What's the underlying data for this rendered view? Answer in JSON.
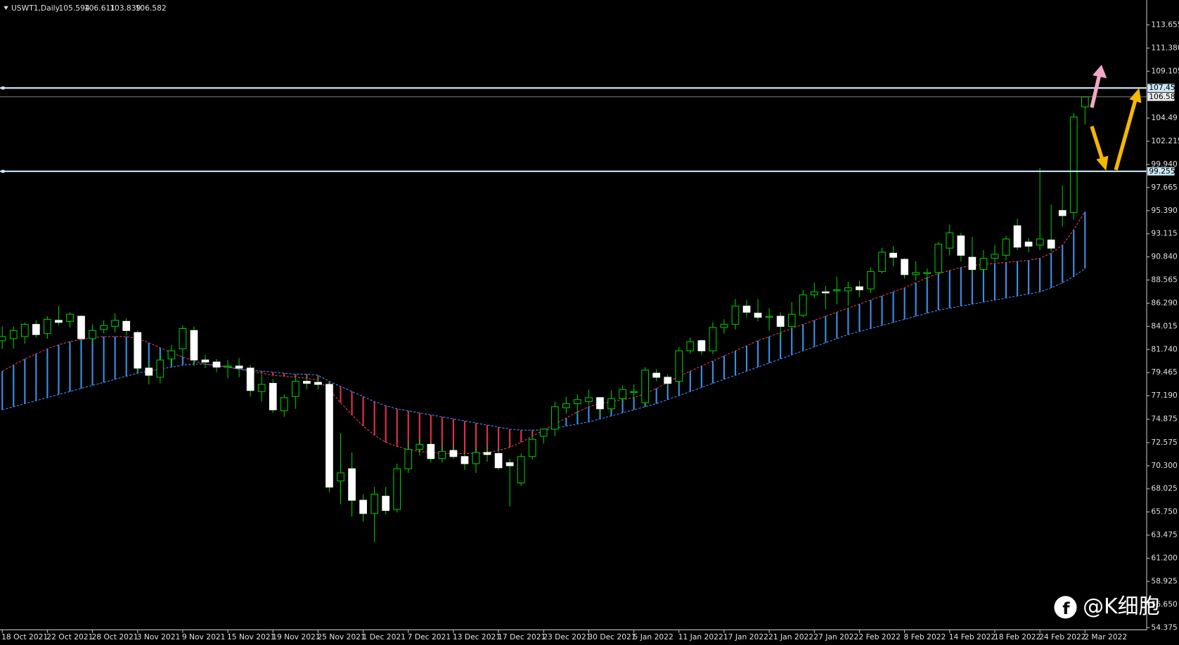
{
  "chart_data": {
    "type": "candlestick",
    "title": "USWT1,Daily",
    "colors": {
      "background": "#000000",
      "bull_body": "#000000",
      "bear_body": "#ffffff",
      "candle_outline": "#00c800",
      "bear_outline": "#ffffff",
      "span_a": "#e0405a",
      "span_b": "#4a8cff",
      "cloud_up": "#3a8ee6",
      "cloud_down": "#e0304e",
      "level": "#c8e6f5",
      "axis": "#c0c0c0"
    },
    "ylim": [
      54.156,
      116.094
    ],
    "yticks": [
      113.655,
      {
        "value": 111.38,
        "label": "111.380"
      },
      109.105,
      104.49,
      102.215,
      {
        "value": 99.94,
        "label": "99.940"
      },
      97.665,
      {
        "value": 95.39,
        "label": "95.390"
      },
      93.115,
      {
        "value": 90.84,
        "label": "90.840"
      },
      88.565,
      {
        "value": 86.29,
        "label": "86.290"
      },
      84.015,
      {
        "value": 81.74,
        "label": "81.740"
      },
      79.465,
      {
        "value": 77.19,
        "label": "77.190"
      },
      74.875,
      72.575,
      {
        "value": 70.3,
        "label": "70.300"
      },
      68.025,
      {
        "value": 65.75,
        "label": "65.750"
      },
      63.475,
      {
        "value": 61.2,
        "label": "61.200"
      },
      58.925,
      {
        "value": 56.65,
        "label": "56.650"
      },
      54.375
    ],
    "levels": [
      107.451,
      99.255
    ],
    "categories": [
      "18 Oct 2021",
      null,
      null,
      null,
      "22 Oct 2021",
      null,
      null,
      null,
      "28 Oct 2021",
      null,
      null,
      null,
      "3 Nov 2021",
      null,
      null,
      null,
      "9 Nov 2021",
      null,
      null,
      null,
      "15 Nov 2021",
      null,
      null,
      null,
      "19 Nov 2021",
      null,
      null,
      null,
      "25 Nov 2021",
      null,
      null,
      null,
      "1 Dec 2021",
      null,
      null,
      null,
      "7 Dec 2021",
      null,
      null,
      null,
      "13 Dec 2021",
      null,
      null,
      null,
      "17 Dec 2021",
      null,
      null,
      null,
      "23 Dec 2021",
      null,
      null,
      null,
      "30 Dec 2021",
      null,
      null,
      null,
      "5 Jan 2022",
      null,
      null,
      null,
      "11 Jan 2022",
      null,
      null,
      null,
      "17 Jan 2022",
      null,
      null,
      null,
      "21 Jan 2022",
      null,
      null,
      null,
      "27 Jan 2022",
      null,
      null,
      null,
      "2 Feb 2022",
      null,
      null,
      null,
      "8 Feb 2022",
      null,
      null,
      null,
      "14 Feb 2022",
      null,
      null,
      null,
      "18 Feb 2022",
      null,
      null,
      null,
      "24 Feb 2022",
      null,
      null,
      null,
      "2 Mar 2022"
    ],
    "ohlc": [
      [
        82.6,
        84.0,
        81.8,
        83.0
      ],
      [
        82.8,
        84.0,
        81.8,
        83.6
      ],
      [
        83.0,
        84.4,
        82.3,
        84.2
      ],
      [
        84.2,
        84.6,
        82.9,
        83.2
      ],
      [
        83.3,
        85.0,
        82.8,
        84.7
      ],
      [
        84.6,
        86.0,
        84.1,
        84.4
      ],
      [
        84.5,
        85.4,
        83.9,
        85.2
      ],
      [
        85.0,
        85.1,
        82.6,
        82.8
      ],
      [
        82.8,
        84.2,
        82.3,
        83.6
      ],
      [
        83.7,
        84.6,
        83.3,
        84.1
      ],
      [
        84.0,
        85.3,
        83.4,
        84.6
      ],
      [
        84.5,
        84.8,
        83.1,
        83.6
      ],
      [
        83.4,
        83.6,
        79.5,
        79.9
      ],
      [
        79.9,
        80.5,
        78.3,
        79.2
      ],
      [
        79.0,
        81.2,
        78.4,
        80.7
      ],
      [
        80.8,
        82.2,
        80.1,
        81.6
      ],
      [
        81.8,
        84.1,
        81.0,
        83.8
      ],
      [
        83.6,
        84.0,
        80.1,
        80.7
      ],
      [
        80.7,
        81.2,
        79.9,
        80.5
      ],
      [
        80.5,
        80.8,
        79.5,
        80.0
      ],
      [
        80.0,
        80.7,
        78.9,
        80.1
      ],
      [
        80.1,
        80.9,
        79.0,
        79.9
      ],
      [
        79.9,
        80.2,
        77.1,
        77.7
      ],
      [
        77.6,
        79.3,
        76.6,
        78.3
      ],
      [
        78.4,
        78.8,
        75.5,
        75.8
      ],
      [
        75.7,
        77.3,
        75.1,
        77.0
      ],
      [
        77.1,
        79.1,
        75.9,
        78.6
      ],
      [
        78.6,
        79.1,
        77.8,
        78.4
      ],
      [
        78.5,
        79.1,
        77.8,
        78.3
      ],
      [
        78.3,
        78.6,
        67.7,
        68.2
      ],
      [
        68.8,
        73.5,
        66.5,
        69.6
      ],
      [
        70.0,
        71.6,
        65.3,
        66.9
      ],
      [
        66.9,
        67.5,
        64.8,
        65.6
      ],
      [
        65.6,
        68.2,
        62.8,
        67.5
      ],
      [
        67.3,
        68.2,
        65.5,
        65.9
      ],
      [
        66.0,
        70.5,
        65.7,
        70.0
      ],
      [
        70.0,
        72.7,
        69.6,
        71.9
      ],
      [
        71.9,
        73.0,
        71.3,
        72.4
      ],
      [
        72.4,
        72.6,
        70.6,
        71.0
      ],
      [
        71.0,
        72.5,
        70.6,
        71.7
      ],
      [
        71.8,
        72.3,
        71.0,
        71.2
      ],
      [
        71.2,
        71.5,
        69.9,
        70.5
      ],
      [
        70.5,
        72.1,
        69.6,
        71.6
      ],
      [
        71.6,
        72.3,
        70.7,
        71.4
      ],
      [
        71.5,
        72.0,
        69.9,
        70.1
      ],
      [
        70.6,
        71.0,
        66.3,
        70.3
      ],
      [
        68.6,
        71.5,
        68.3,
        71.2
      ],
      [
        71.2,
        73.3,
        70.9,
        72.9
      ],
      [
        73.2,
        73.9,
        72.5,
        73.9
      ],
      [
        73.9,
        76.6,
        73.2,
        76.1
      ],
      [
        76.0,
        77.1,
        75.4,
        76.4
      ],
      [
        76.4,
        77.3,
        75.3,
        76.8
      ],
      [
        76.6,
        77.8,
        76.2,
        77.0
      ],
      [
        77.0,
        77.0,
        75.2,
        75.9
      ],
      [
        75.9,
        77.7,
        75.6,
        76.9
      ],
      [
        76.9,
        78.2,
        76.4,
        77.8
      ],
      [
        77.5,
        78.3,
        76.8,
        77.6
      ],
      [
        76.5,
        80.0,
        76.3,
        79.7
      ],
      [
        79.4,
        79.8,
        78.6,
        79.0
      ],
      [
        79.0,
        79.3,
        78.0,
        78.4
      ],
      [
        78.6,
        82.0,
        78.2,
        81.6
      ],
      [
        81.6,
        82.9,
        81.3,
        82.5
      ],
      [
        82.6,
        82.7,
        81.2,
        81.6
      ],
      [
        81.6,
        84.4,
        81.3,
        83.9
      ],
      [
        83.9,
        84.7,
        83.3,
        84.2
      ],
      [
        84.2,
        86.7,
        83.7,
        86.0
      ],
      [
        86.0,
        86.6,
        84.9,
        85.4
      ],
      [
        85.3,
        86.7,
        84.5,
        84.9
      ],
      [
        84.9,
        85.8,
        83.6,
        85.0
      ],
      [
        85.0,
        85.4,
        82.8,
        84.0
      ],
      [
        84.0,
        86.4,
        83.6,
        85.2
      ],
      [
        85.1,
        87.6,
        84.9,
        87.1
      ],
      [
        87.1,
        88.3,
        86.8,
        87.4
      ],
      [
        87.4,
        88.0,
        85.7,
        87.3
      ],
      [
        87.5,
        88.9,
        86.2,
        87.6
      ],
      [
        87.5,
        88.4,
        86.0,
        87.8
      ],
      [
        87.9,
        88.5,
        86.9,
        87.6
      ],
      [
        87.7,
        89.8,
        87.3,
        89.4
      ],
      [
        89.4,
        91.7,
        89.2,
        91.3
      ],
      [
        91.2,
        91.9,
        89.9,
        90.8
      ],
      [
        90.6,
        90.7,
        88.7,
        89.1
      ],
      [
        89.1,
        90.4,
        88.5,
        89.3
      ],
      [
        89.2,
        89.7,
        88.3,
        89.3
      ],
      [
        89.3,
        92.3,
        89.1,
        92.1
      ],
      [
        91.7,
        94.0,
        91.0,
        93.2
      ],
      [
        92.9,
        93.2,
        90.4,
        91.0
      ],
      [
        90.8,
        92.8,
        89.0,
        89.6
      ],
      [
        89.6,
        91.5,
        89.2,
        90.7
      ],
      [
        90.7,
        92.0,
        90.3,
        91.1
      ],
      [
        91.0,
        92.9,
        90.5,
        92.6
      ],
      [
        93.9,
        94.6,
        91.5,
        91.8
      ],
      [
        92.3,
        92.7,
        91.3,
        91.9
      ],
      [
        92.0,
        99.6,
        91.5,
        92.6
      ],
      [
        92.5,
        96.0,
        91.3,
        91.7
      ],
      [
        95.4,
        97.9,
        93.8,
        94.9
      ],
      [
        95.2,
        105.0,
        94.5,
        104.6
      ],
      [
        105.594,
        106.611,
        103.839,
        106.582
      ]
    ],
    "span_a": [
      79.6,
      80.2,
      80.8,
      81.3,
      81.8,
      82.2,
      82.5,
      82.7,
      82.9,
      83.0,
      83.0,
      83.0,
      82.8,
      82.4,
      81.9,
      81.4,
      81.0,
      80.6,
      80.3,
      80.1,
      80.0,
      79.8,
      79.6,
      79.4,
      79.2,
      79.1,
      79.0,
      78.9,
      78.7,
      77.8,
      76.5,
      75.3,
      74.2,
      73.3,
      72.6,
      72.2,
      71.9,
      71.7,
      71.6,
      71.5,
      71.5,
      71.5,
      71.5,
      71.6,
      71.8,
      72.1,
      72.6,
      73.2,
      73.8,
      74.4,
      75.0,
      75.6,
      76.1,
      76.4,
      76.6,
      76.8,
      77.0,
      77.4,
      77.9,
      78.5,
      79.1,
      79.6,
      80.1,
      80.6,
      81.1,
      81.6,
      82.1,
      82.6,
      83.0,
      83.4,
      83.8,
      84.2,
      84.6,
      85.0,
      85.4,
      85.8,
      86.2,
      86.6,
      87.0,
      87.4,
      87.8,
      88.3,
      88.8,
      89.2,
      89.5,
      89.8,
      90.0,
      90.1,
      90.2,
      90.3,
      90.4,
      90.5,
      90.7,
      91.2,
      92.0,
      93.5,
      95.3
    ],
    "span_b": [
      75.8,
      76.1,
      76.4,
      76.7,
      77.0,
      77.3,
      77.6,
      77.9,
      78.2,
      78.5,
      78.8,
      79.1,
      79.4,
      79.6,
      79.8,
      80.0,
      80.2,
      80.3,
      80.3,
      80.2,
      80.0,
      79.8,
      79.7,
      79.6,
      79.5,
      79.4,
      79.3,
      79.3,
      79.2,
      78.6,
      78.1,
      77.6,
      77.1,
      76.6,
      76.2,
      75.9,
      75.7,
      75.5,
      75.3,
      75.1,
      74.9,
      74.7,
      74.5,
      74.3,
      74.1,
      73.9,
      73.8,
      73.8,
      73.8,
      74.0,
      74.2,
      74.4,
      74.6,
      74.9,
      75.2,
      75.5,
      75.8,
      76.1,
      76.4,
      76.8,
      77.2,
      77.6,
      78.0,
      78.4,
      78.8,
      79.2,
      79.6,
      80.0,
      80.4,
      80.8,
      81.2,
      81.6,
      82.0,
      82.4,
      82.8,
      83.2,
      83.5,
      83.8,
      84.1,
      84.4,
      84.7,
      85.0,
      85.3,
      85.6,
      85.8,
      86.0,
      86.2,
      86.4,
      86.6,
      86.8,
      87.0,
      87.2,
      87.4,
      87.8,
      88.3,
      88.9,
      89.7
    ]
  },
  "watermark": "@K细胞"
}
